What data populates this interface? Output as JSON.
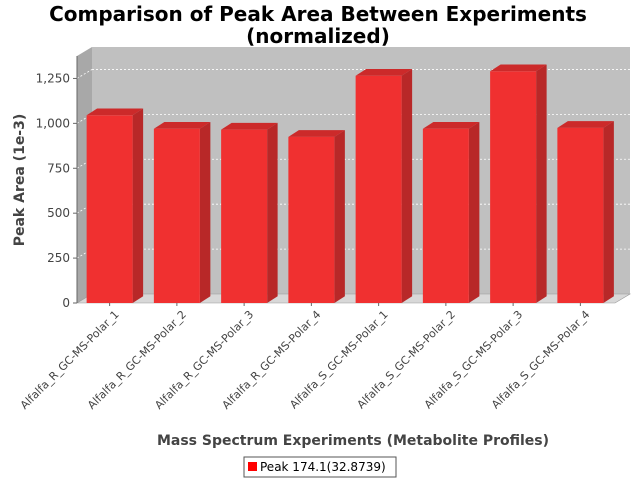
{
  "chart_data": {
    "type": "bar",
    "title_line1": "Comparison of Peak Area Between Experiments",
    "title_line2": "(normalized)",
    "xlabel": "Mass Spectrum Experiments (Metabolite Profiles)",
    "ylabel": "Peak Area (1e-3)",
    "categories": [
      "Alfalfa_R_GC-MS-Polar_1",
      "Alfalfa_R_GC-MS-Polar_2",
      "Alfalfa_R_GC-MS-Polar_3",
      "Alfalfa_R_GC-MS-Polar_4",
      "Alfalfa_S_GC-MS-Polar_1",
      "Alfalfa_S_GC-MS-Polar_2",
      "Alfalfa_S_GC-MS-Polar_3",
      "Alfalfa_S_GC-MS-Polar_4"
    ],
    "series": [
      {
        "name": "Peak 174.1(32.8739)",
        "values": [
          1045,
          970,
          965,
          925,
          1265,
          970,
          1290,
          975
        ]
      }
    ],
    "ylim": [
      0,
      1375
    ],
    "yticks": [
      0,
      250,
      500,
      750,
      1000,
      1250
    ],
    "ytick_labels": [
      "0",
      "250",
      "500",
      "750",
      "1,000",
      "1,250"
    ],
    "grid": true,
    "legend": "bottom",
    "colors": {
      "bar_front": "#f03030",
      "bar_side": "#b82828",
      "bar_top": "#cc2a2a",
      "plot_back": "#c0c0c0",
      "plot_floor": "#d8d8d8",
      "plot_wall": "#a8a8a8",
      "legend_swatch": "#ff0000"
    }
  }
}
